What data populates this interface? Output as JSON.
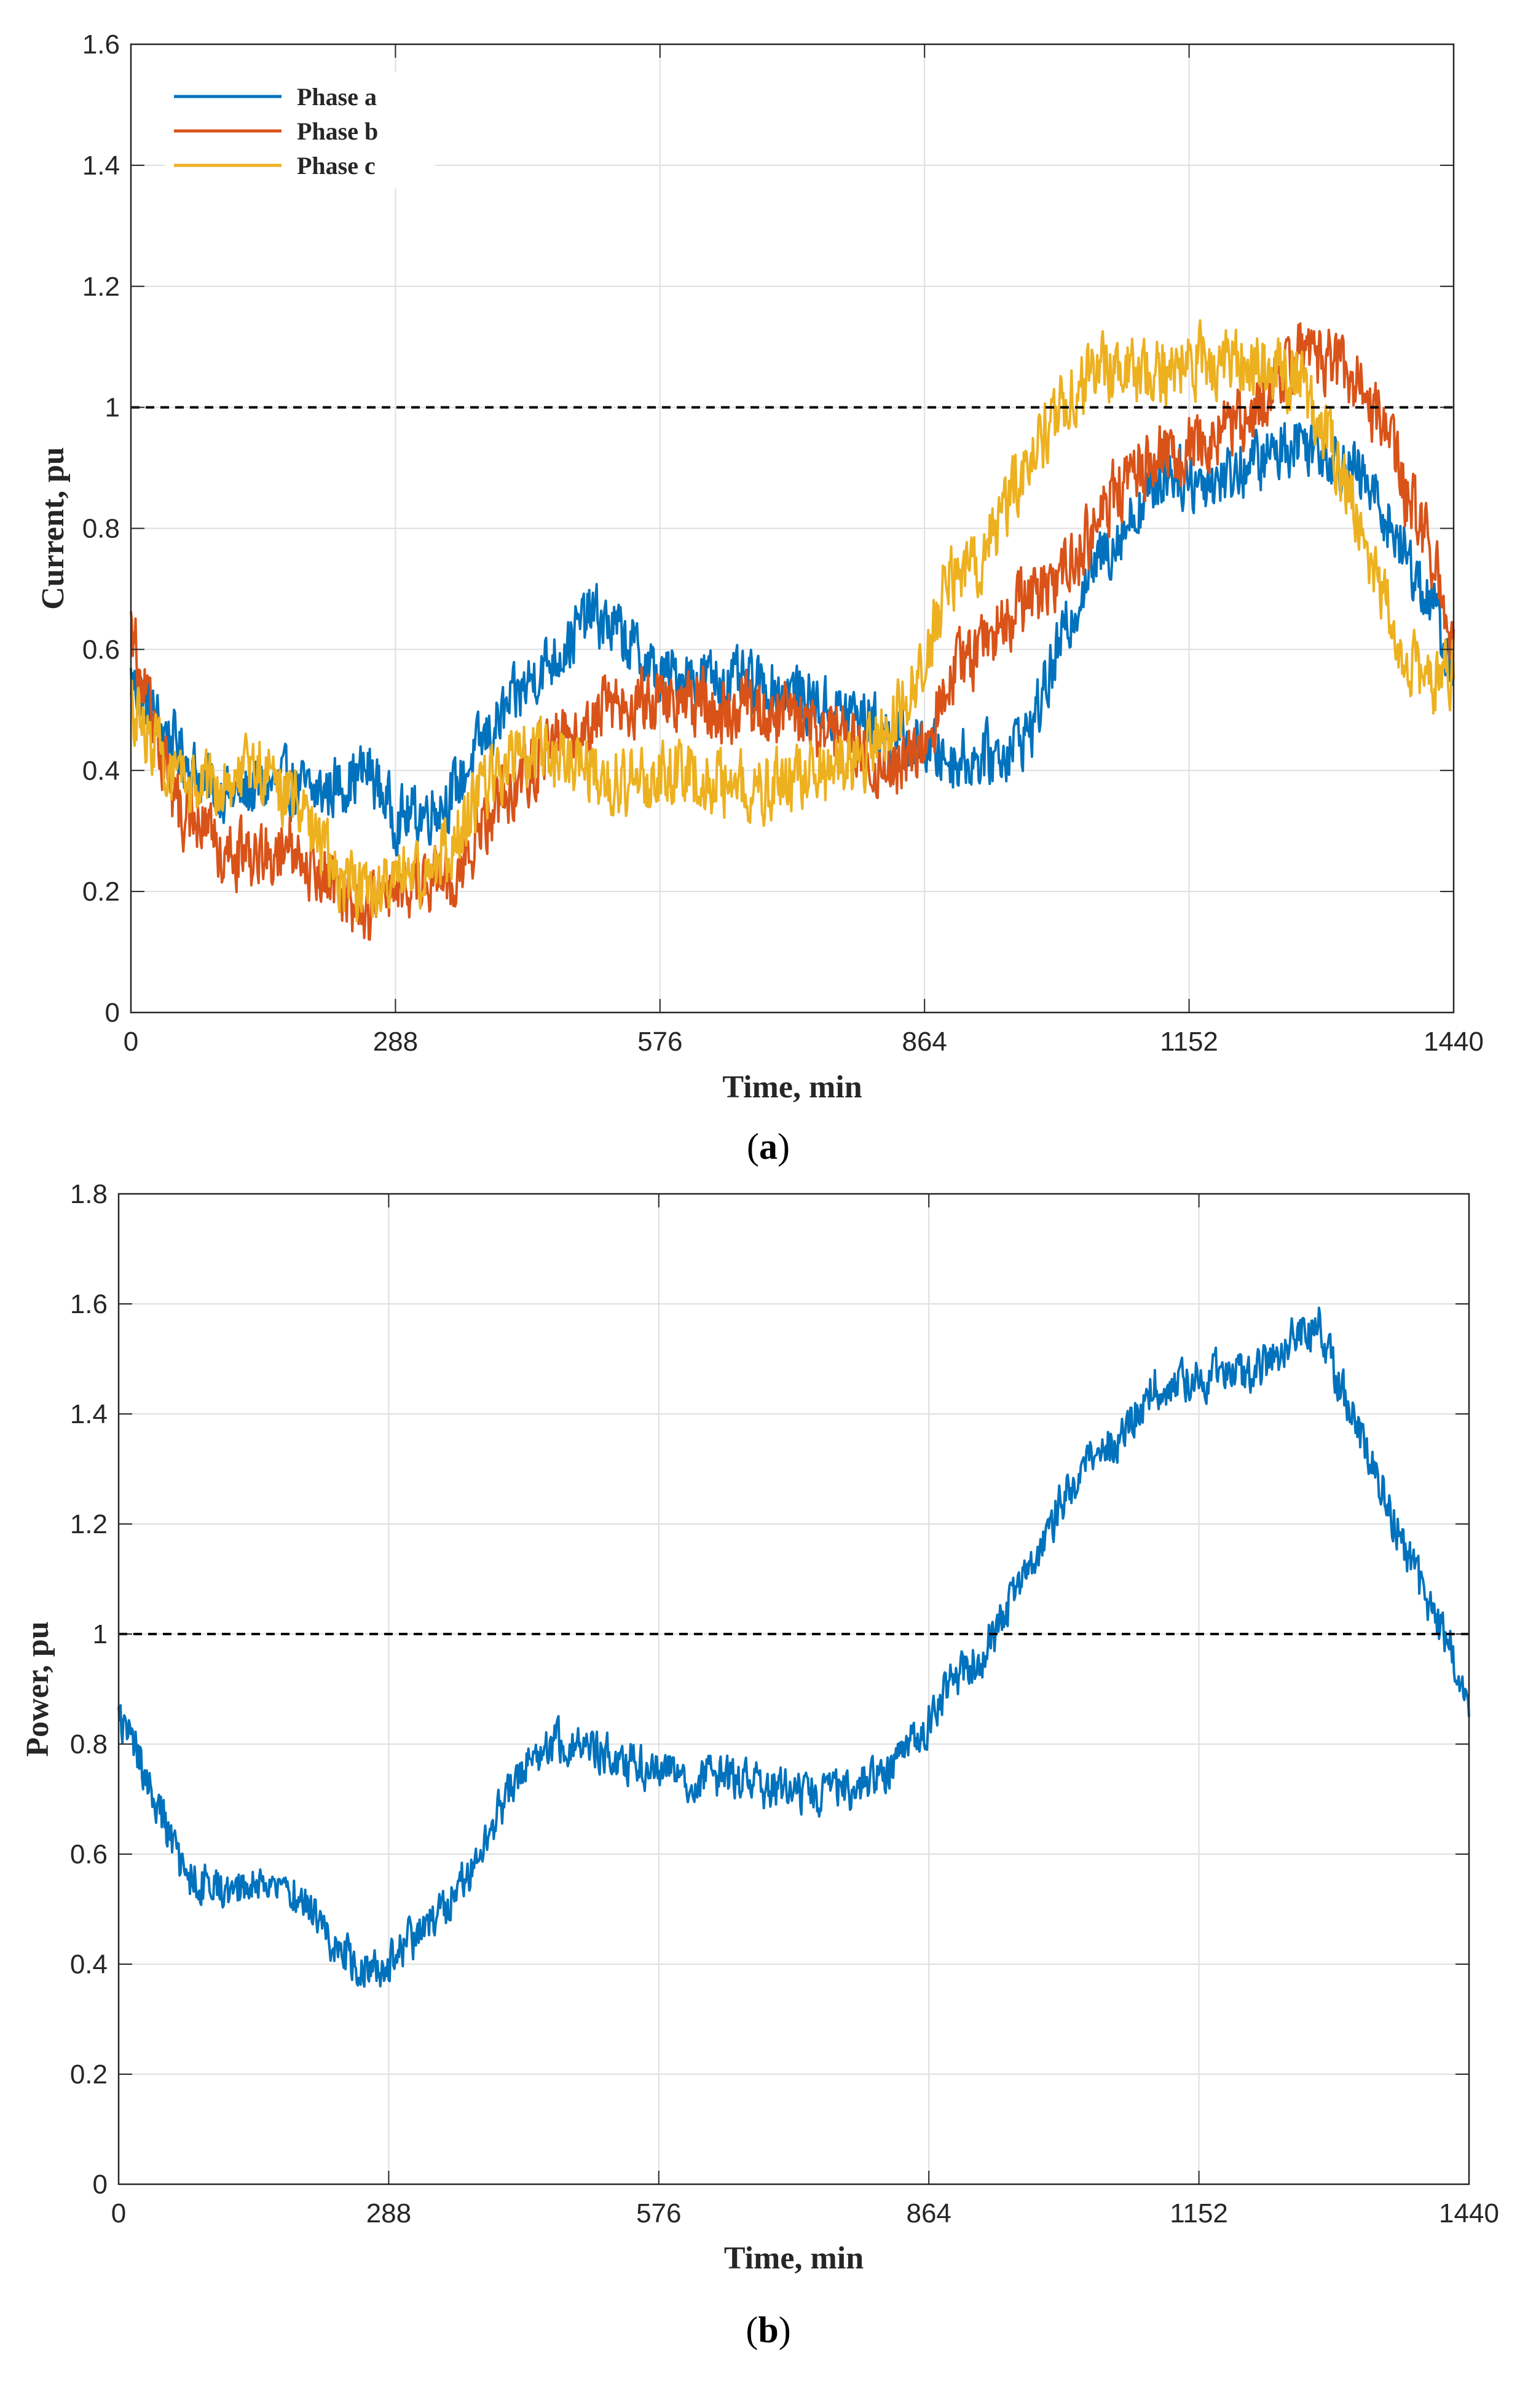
{
  "chart_data": [
    {
      "type": "line",
      "panel_label": "a",
      "xlabel": "Time, min",
      "ylabel": "Current, pu",
      "xlim": [
        0,
        1440
      ],
      "ylim": [
        0,
        1.6
      ],
      "xticks": [
        "0",
        "288",
        "576",
        "864",
        "1152",
        "1440"
      ],
      "yticks": [
        "0",
        "0.2",
        "0.4",
        "0.6",
        "0.8",
        "1",
        "1.2",
        "1.4",
        "1.6"
      ],
      "grid": true,
      "legend_position": "top-left",
      "reference_line": {
        "y": 1.0,
        "style": "dashed",
        "color": "#000000"
      },
      "series": [
        {
          "name": "Phase a",
          "color": "#0072BD",
          "noise": 0.045,
          "x": [
            0,
            20,
            50,
            80,
            110,
            140,
            170,
            200,
            230,
            260,
            288,
            320,
            350,
            380,
            410,
            440,
            470,
            500,
            530,
            560,
            576,
            600,
            640,
            680,
            720,
            760,
            800,
            830,
            864,
            890,
            920,
            950,
            980,
            1010,
            1040,
            1070,
            1100,
            1130,
            1152,
            1180,
            1210,
            1240,
            1270,
            1300,
            1330,
            1360,
            1390,
            1420,
            1440
          ],
          "y": [
            0.55,
            0.5,
            0.44,
            0.38,
            0.36,
            0.37,
            0.38,
            0.36,
            0.38,
            0.4,
            0.32,
            0.33,
            0.36,
            0.44,
            0.5,
            0.56,
            0.6,
            0.66,
            0.63,
            0.58,
            0.55,
            0.56,
            0.55,
            0.54,
            0.53,
            0.5,
            0.49,
            0.45,
            0.44,
            0.42,
            0.42,
            0.43,
            0.47,
            0.6,
            0.72,
            0.78,
            0.84,
            0.9,
            0.88,
            0.88,
            0.9,
            0.92,
            0.95,
            0.93,
            0.9,
            0.84,
            0.75,
            0.66,
            0.55
          ]
        },
        {
          "name": "Phase b",
          "color": "#D95319",
          "noise": 0.05,
          "x": [
            0,
            20,
            50,
            80,
            110,
            140,
            170,
            200,
            230,
            260,
            288,
            320,
            350,
            380,
            410,
            440,
            470,
            500,
            530,
            560,
            576,
            600,
            640,
            680,
            720,
            760,
            800,
            830,
            864,
            890,
            920,
            950,
            980,
            1010,
            1040,
            1070,
            1100,
            1130,
            1152,
            1180,
            1210,
            1240,
            1270,
            1300,
            1330,
            1360,
            1390,
            1420,
            1440
          ],
          "y": [
            0.64,
            0.5,
            0.34,
            0.3,
            0.26,
            0.25,
            0.28,
            0.24,
            0.2,
            0.16,
            0.2,
            0.21,
            0.22,
            0.3,
            0.36,
            0.42,
            0.46,
            0.49,
            0.51,
            0.52,
            0.51,
            0.52,
            0.5,
            0.5,
            0.49,
            0.46,
            0.42,
            0.39,
            0.44,
            0.55,
            0.6,
            0.65,
            0.68,
            0.72,
            0.78,
            0.86,
            0.9,
            0.92,
            0.93,
            0.95,
            0.98,
            1.02,
            1.1,
            1.08,
            1.05,
            0.98,
            0.85,
            0.75,
            0.6
          ]
        },
        {
          "name": "Phase c",
          "color": "#EDB120",
          "noise": 0.05,
          "x": [
            0,
            20,
            50,
            80,
            110,
            140,
            170,
            200,
            230,
            260,
            288,
            320,
            350,
            380,
            410,
            440,
            470,
            500,
            530,
            560,
            576,
            600,
            640,
            680,
            720,
            760,
            800,
            830,
            864,
            890,
            920,
            950,
            980,
            1010,
            1040,
            1070,
            1100,
            1130,
            1152,
            1180,
            1210,
            1240,
            1270,
            1300,
            1330,
            1360,
            1390,
            1420,
            1440
          ],
          "y": [
            0.5,
            0.46,
            0.37,
            0.37,
            0.4,
            0.41,
            0.36,
            0.3,
            0.22,
            0.2,
            0.21,
            0.24,
            0.28,
            0.36,
            0.41,
            0.44,
            0.42,
            0.4,
            0.38,
            0.38,
            0.39,
            0.4,
            0.38,
            0.37,
            0.38,
            0.4,
            0.43,
            0.48,
            0.58,
            0.72,
            0.74,
            0.82,
            0.92,
            1.0,
            1.04,
            1.07,
            1.05,
            1.06,
            1.08,
            1.07,
            1.08,
            1.06,
            1.05,
            0.96,
            0.85,
            0.7,
            0.58,
            0.55,
            0.56
          ]
        }
      ]
    },
    {
      "type": "line",
      "panel_label": "b",
      "xlabel": "Time, min",
      "ylabel": "Power, pu",
      "xlim": [
        0,
        1440
      ],
      "ylim": [
        0,
        1.8
      ],
      "xticks": [
        "0",
        "288",
        "576",
        "864",
        "1152",
        "1440"
      ],
      "yticks": [
        "0",
        "0.2",
        "0.4",
        "0.6",
        "0.8",
        "1",
        "1.2",
        "1.4",
        "1.6",
        "1.8"
      ],
      "grid": true,
      "reference_line": {
        "y": 1.0,
        "style": "dashed",
        "color": "#000000"
      },
      "series": [
        {
          "name": "Power",
          "color": "#0072BD",
          "noise": 0.035,
          "x": [
            0,
            20,
            50,
            70,
            100,
            130,
            160,
            190,
            220,
            250,
            288,
            310,
            340,
            370,
            400,
            430,
            460,
            490,
            520,
            550,
            576,
            610,
            650,
            690,
            730,
            770,
            800,
            830,
            864,
            890,
            920,
            950,
            980,
            1010,
            1040,
            1070,
            1100,
            1130,
            1152,
            1180,
            1210,
            1240,
            1260,
            1280,
            1310,
            1340,
            1370,
            1400,
            1420,
            1440
          ],
          "y": [
            0.85,
            0.78,
            0.65,
            0.56,
            0.54,
            0.54,
            0.55,
            0.53,
            0.46,
            0.4,
            0.4,
            0.44,
            0.48,
            0.56,
            0.66,
            0.76,
            0.8,
            0.8,
            0.78,
            0.76,
            0.76,
            0.74,
            0.74,
            0.72,
            0.71,
            0.71,
            0.73,
            0.76,
            0.84,
            0.92,
            0.96,
            1.05,
            1.14,
            1.26,
            1.32,
            1.36,
            1.45,
            1.46,
            1.46,
            1.48,
            1.48,
            1.52,
            1.55,
            1.56,
            1.42,
            1.3,
            1.16,
            1.04,
            0.98,
            0.86
          ]
        }
      ]
    }
  ]
}
